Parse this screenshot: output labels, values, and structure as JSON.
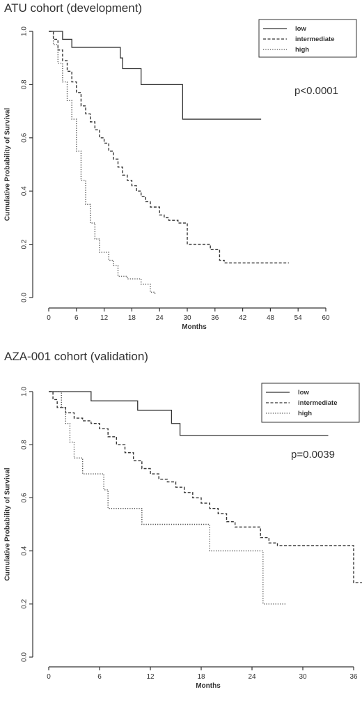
{
  "chart_data": [
    {
      "type": "line",
      "title": "ATU cohort (development)",
      "xlabel": "Months",
      "ylabel": "Cumulative Probability of Survival",
      "xlim": [
        0,
        60
      ],
      "ylim": [
        0.0,
        1.0
      ],
      "xticks": [
        0,
        6,
        12,
        18,
        24,
        30,
        36,
        42,
        48,
        54,
        60
      ],
      "yticks": [
        0.0,
        0.2,
        0.4,
        0.6,
        0.8,
        1.0
      ],
      "grid": false,
      "legend_position": "top-right",
      "annotation": "p<0.0001",
      "series": [
        {
          "name": "low",
          "dash": "solid",
          "color": "#333333",
          "x": [
            0,
            3,
            4,
            5,
            15.5,
            16,
            20,
            29,
            46
          ],
          "y": [
            1.0,
            0.97,
            0.97,
            0.94,
            0.9,
            0.86,
            0.8,
            0.67,
            0.67
          ]
        },
        {
          "name": "intermediate",
          "dash": "dashed",
          "color": "#333333",
          "x": [
            0,
            1,
            2,
            3,
            4,
            5,
            6,
            7,
            8,
            9,
            10,
            11,
            12,
            13,
            14,
            15,
            16,
            17,
            18,
            19,
            20,
            21,
            22,
            24,
            25,
            26,
            28,
            30,
            31,
            35,
            37,
            38,
            52
          ],
          "y": [
            1.0,
            0.97,
            0.93,
            0.89,
            0.85,
            0.81,
            0.77,
            0.72,
            0.69,
            0.66,
            0.63,
            0.6,
            0.58,
            0.55,
            0.52,
            0.49,
            0.46,
            0.44,
            0.42,
            0.4,
            0.38,
            0.36,
            0.34,
            0.31,
            0.3,
            0.29,
            0.28,
            0.2,
            0.2,
            0.18,
            0.14,
            0.13,
            0.13
          ]
        },
        {
          "name": "high",
          "dash": "dotted",
          "color": "#555555",
          "x": [
            0,
            1,
            2,
            3,
            4,
            5,
            6,
            7,
            8,
            9,
            10,
            11,
            12,
            13,
            14,
            15,
            17,
            19,
            20,
            22,
            23
          ],
          "y": [
            1.0,
            0.95,
            0.88,
            0.81,
            0.74,
            0.67,
            0.55,
            0.44,
            0.35,
            0.28,
            0.22,
            0.17,
            0.17,
            0.14,
            0.12,
            0.08,
            0.07,
            0.07,
            0.05,
            0.02,
            0.01
          ]
        }
      ]
    },
    {
      "type": "line",
      "title": "AZA-001 cohort (validation)",
      "xlabel": "Months",
      "ylabel": "Cumulative Probability of Survival",
      "xlim": [
        0,
        36
      ],
      "ylim": [
        0.0,
        1.0
      ],
      "xticks": [
        0,
        6,
        12,
        18,
        24,
        30,
        36
      ],
      "yticks": [
        0.0,
        0.2,
        0.4,
        0.6,
        0.8,
        1.0
      ],
      "grid": false,
      "legend_position": "top-right",
      "annotation": "p=0.0039",
      "series": [
        {
          "name": "low",
          "dash": "solid",
          "color": "#333333",
          "x": [
            0,
            5,
            10.5,
            14.5,
            15.5,
            33
          ],
          "y": [
            1.0,
            0.965,
            0.93,
            0.88,
            0.835,
            0.835
          ]
        },
        {
          "name": "intermediate",
          "dash": "dashed",
          "color": "#333333",
          "x": [
            0,
            0.5,
            1,
            2,
            3,
            4,
            5,
            6,
            7,
            8,
            9,
            10,
            11,
            12,
            13,
            14,
            15,
            16,
            17,
            18,
            19,
            20,
            21,
            22,
            25,
            26,
            27,
            35,
            36,
            38
          ],
          "y": [
            1.0,
            0.97,
            0.94,
            0.92,
            0.9,
            0.89,
            0.88,
            0.86,
            0.83,
            0.8,
            0.77,
            0.74,
            0.71,
            0.69,
            0.67,
            0.66,
            0.64,
            0.62,
            0.6,
            0.58,
            0.56,
            0.54,
            0.51,
            0.49,
            0.45,
            0.43,
            0.42,
            0.42,
            0.28,
            0.28
          ]
        },
        {
          "name": "high",
          "dash": "dotted",
          "color": "#555555",
          "x": [
            0,
            1.5,
            2,
            2.5,
            3,
            4,
            6.5,
            7,
            11,
            18.5,
            19,
            25,
            25.3,
            28
          ],
          "y": [
            1.0,
            0.94,
            0.88,
            0.81,
            0.75,
            0.69,
            0.63,
            0.56,
            0.5,
            0.5,
            0.4,
            0.4,
            0.2,
            0.2
          ]
        }
      ]
    }
  ]
}
